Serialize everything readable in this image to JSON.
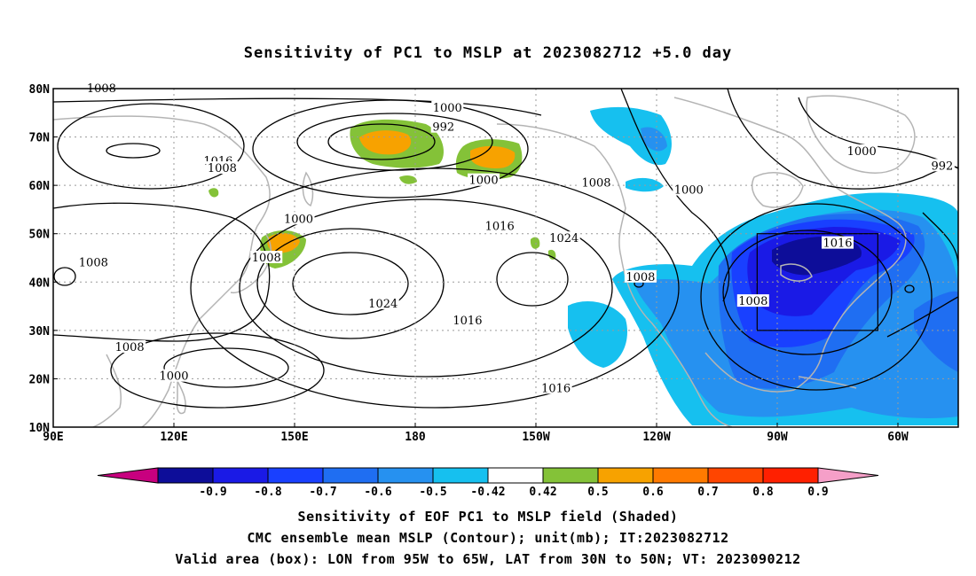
{
  "title": "Sensitivity of PC1 to MSLP at 2023082712 +5.0 day",
  "map": {
    "lon_ticks": [
      "90E",
      "120E",
      "150E",
      "180",
      "150W",
      "120W",
      "90W",
      "60W"
    ],
    "lat_ticks": [
      "80N",
      "70N",
      "60N",
      "50N",
      "40N",
      "30N",
      "20N",
      "10N"
    ],
    "lon_range_deg_east": [
      90,
      315
    ],
    "lat_range": [
      10,
      80
    ],
    "valid_box": {
      "lon_w": -95,
      "lon_e": -65,
      "lat_s": 30,
      "lat_n": 50
    },
    "gridlines": "dotted",
    "coastline_color": "#b4b4b4",
    "contour_color": "#000000"
  },
  "contour_labels": [
    {
      "text": "1008",
      "lon": 102,
      "lat": 80
    },
    {
      "text": "1000",
      "lon": 188,
      "lat": 76
    },
    {
      "text": "992",
      "lon": 187,
      "lat": 72
    },
    {
      "text": "1016",
      "lon": 131,
      "lat": 65
    },
    {
      "text": "1008",
      "lon": 132,
      "lat": 63.5
    },
    {
      "text": "1000",
      "lon": 197,
      "lat": 61
    },
    {
      "text": "1008",
      "lon": 225,
      "lat": 60.5
    },
    {
      "text": "1000",
      "lon": 248,
      "lat": 59
    },
    {
      "text": "1000",
      "lon": 291,
      "lat": 67
    },
    {
      "text": "992",
      "lon": 311,
      "lat": 64
    },
    {
      "text": "1000",
      "lon": 151,
      "lat": 53
    },
    {
      "text": "1016",
      "lon": 201,
      "lat": 51.5
    },
    {
      "text": "1024",
      "lon": 217,
      "lat": 49
    },
    {
      "text": "1016",
      "lon": 285,
      "lat": 48
    },
    {
      "text": "1008",
      "lon": 100,
      "lat": 44
    },
    {
      "text": "1008",
      "lon": 143,
      "lat": 45
    },
    {
      "text": "1008",
      "lon": 236,
      "lat": 41
    },
    {
      "text": "1024",
      "lon": 172,
      "lat": 35.5
    },
    {
      "text": "1016",
      "lon": 193,
      "lat": 32
    },
    {
      "text": "1008",
      "lon": 264,
      "lat": 36
    },
    {
      "text": "1008",
      "lon": 109,
      "lat": 26.5
    },
    {
      "text": "1000",
      "lon": 120,
      "lat": 20.5
    },
    {
      "text": "1016",
      "lon": 215,
      "lat": 18
    }
  ],
  "colorbar": {
    "colors": [
      "#c8007f",
      "#0d0d99",
      "#1a1ae6",
      "#1940ff",
      "#1f6ef2",
      "#2691f0",
      "#16c0ef",
      "#ffffff",
      "#84c238",
      "#f7a200",
      "#ff7a00",
      "#ff4500",
      "#ff2000",
      "#f59fc8"
    ],
    "labels": [
      "-0.9",
      "-0.8",
      "-0.7",
      "-0.6",
      "-0.5",
      "-0.42",
      "0.42",
      "0.5",
      "0.6",
      "0.7",
      "0.8",
      "0.9"
    ]
  },
  "captions": {
    "line1": "Sensitivity of EOF PC1 to MSLP field (Shaded)",
    "line2": "CMC ensemble mean MSLP (Contour); unit(mb); IT:2023082712",
    "line3": "Valid area (box): LON from 95W to 65W, LAT from 30N to 50N; VT: 2023090212"
  }
}
